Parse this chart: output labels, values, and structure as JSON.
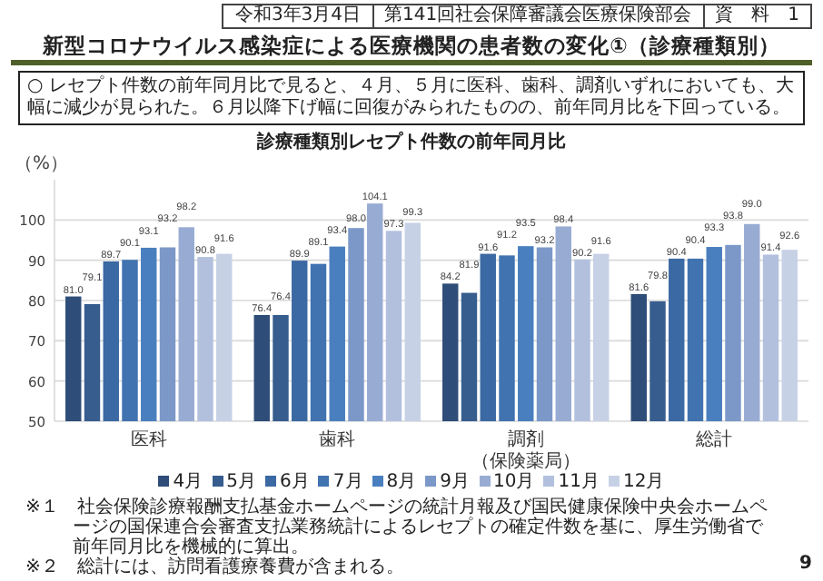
{
  "chart_data": {
    "type": "bar",
    "title": "新型コロナウイルス感染症による医療機関の患者数の変化①（診療種類別）",
    "subtitle": "診療種類別レセプト件数の前年同月比",
    "ylabel": "（%）",
    "categories": [
      "医科",
      "歯科",
      "調剤（保険薬局）",
      "総計"
    ],
    "series": [
      {
        "name": "4月",
        "color": "#2e4d78",
        "values": [
          81.0,
          76.4,
          84.2,
          81.6
        ],
        "value_labels": [
          "81.0",
          "76.4",
          "84.2",
          "81.6"
        ]
      },
      {
        "name": "5月",
        "color": "#365d8e",
        "values": [
          79.1,
          76.4,
          81.9,
          79.8
        ],
        "value_labels": [
          "79.1",
          "76.4",
          "81.9",
          "79.8"
        ]
      },
      {
        "name": "6月",
        "color": "#3b69a3",
        "values": [
          89.7,
          89.9,
          91.6,
          90.4
        ],
        "value_labels": [
          "89.7",
          "89.9",
          "91.6",
          "90.4"
        ]
      },
      {
        "name": "7月",
        "color": "#4173b0",
        "values": [
          90.1,
          89.1,
          91.2,
          90.4
        ],
        "value_labels": [
          "90.1",
          "89.1",
          "91.2",
          "90.4"
        ]
      },
      {
        "name": "8月",
        "color": "#4a7fbf",
        "values": [
          93.1,
          93.4,
          93.5,
          93.3
        ],
        "value_labels": [
          "93.1",
          "93.4",
          "93.5",
          "93.3"
        ]
      },
      {
        "name": "9月",
        "color": "#7b98c8",
        "values": [
          93.2,
          98.0,
          93.2,
          93.8
        ],
        "value_labels": [
          "93.2",
          "98.0",
          "93.2",
          "93.8"
        ]
      },
      {
        "name": "10月",
        "color": "#98acd3",
        "values": [
          98.2,
          104.1,
          98.4,
          99.0
        ],
        "value_labels": [
          "98.2",
          "104.1",
          "98.4",
          "99.0"
        ]
      },
      {
        "name": "11月",
        "color": "#b2c0de",
        "values": [
          90.8,
          97.3,
          90.2,
          91.4
        ],
        "value_labels": [
          "90.8",
          "97.3",
          "90.2",
          "91.4"
        ]
      },
      {
        "name": "12月",
        "color": "#c7d1e6",
        "values": [
          91.6,
          99.3,
          91.6,
          92.6
        ],
        "value_labels": [
          "91.6",
          "99.3",
          "91.6",
          "92.6"
        ]
      }
    ],
    "ylim": [
      50,
      110
    ],
    "yticks": [
      50,
      60,
      70,
      80,
      90,
      100
    ],
    "grid": "y",
    "legend": "bottom",
    "annotations": [
      "令和3年3月4日",
      "第141回社会保障審議会医療保険部会",
      "資　料　1",
      "○ レセプト件数の前年同月比で見ると、４月、５月に医科、歯科、調剤いずれにおいても、大幅に減少が見られた。６月以降下げ幅に回復がみられたものの、前年同月比を下回っている。",
      "※１　社会保険診療報酬支払基金ホームページの統計月報及び国民健康保険中央会ホームページの国保連合会審査支払業務統計によるレセプトの確定件数を基に、厚生労働省で前年同月比を機械的に算出。",
      "※２　総計には、訪問看護療養費が含まれる。",
      "9"
    ]
  }
}
